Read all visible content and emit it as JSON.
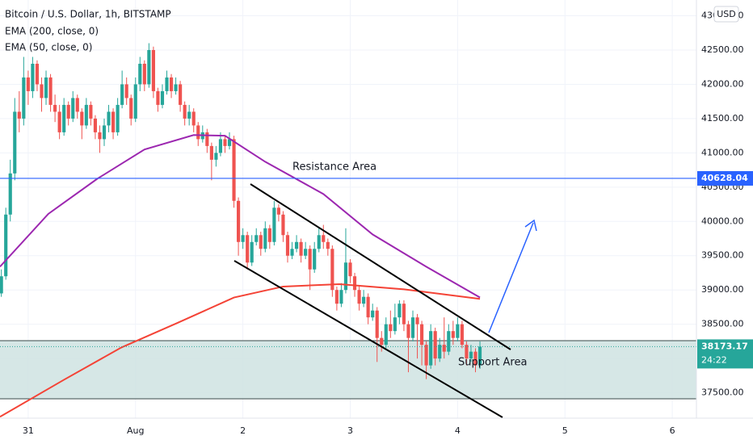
{
  "chart_data": {
    "type": "candlestick",
    "title": "Bitcoin / U.S. Dollar, 1h, BITSTAMP",
    "currency": "USD",
    "up_color": "#26a69a",
    "down_color": "#ef5350",
    "x": [
      -6,
      -5,
      -4,
      -3,
      -2,
      -1,
      0,
      1,
      2,
      3,
      4,
      5,
      6,
      7,
      8,
      9,
      10,
      11,
      12,
      13,
      14,
      15,
      16,
      17,
      18,
      19,
      20,
      21,
      22,
      23,
      24,
      25,
      26,
      27,
      28,
      29,
      30,
      31,
      32,
      33,
      34,
      35,
      36,
      37,
      38,
      39,
      40,
      41,
      42,
      43,
      44,
      45,
      46,
      47,
      48,
      49,
      50,
      51,
      52,
      53,
      54,
      55,
      56,
      57,
      58,
      59,
      60,
      61,
      62,
      63,
      64,
      65,
      66,
      67,
      68,
      69,
      70,
      71,
      72,
      73,
      74,
      75,
      76,
      77,
      78,
      79,
      80,
      81,
      82,
      83,
      84,
      85,
      86,
      87,
      88,
      89,
      90,
      91,
      92,
      93,
      94,
      95,
      96,
      97,
      98,
      99,
      100,
      101
    ],
    "open": [
      38950,
      39200,
      40100,
      40700,
      41600,
      41500,
      42100,
      41900,
      42300,
      42000,
      41800,
      42100,
      41700,
      41600,
      41300,
      41700,
      41500,
      41800,
      41600,
      41400,
      41700,
      41500,
      41300,
      41200,
      41400,
      41600,
      41300,
      41700,
      42000,
      41800,
      41500,
      42000,
      42300,
      42000,
      42500,
      41900,
      41700,
      41900,
      42100,
      41900,
      42000,
      41700,
      41500,
      41600,
      41400,
      41200,
      41300,
      41100,
      40900,
      41000,
      41200,
      41100,
      41200,
      40300,
      39700,
      39800,
      39400,
      39700,
      39800,
      39600,
      39900,
      39700,
      40200,
      40100,
      39800,
      39500,
      39600,
      39700,
      39500,
      39600,
      39300,
      39600,
      39800,
      39700,
      39600,
      39000,
      38800,
      39000,
      39400,
      39200,
      39000,
      38800,
      38900,
      38600,
      38700,
      38300,
      38200,
      38500,
      38400,
      38600,
      38800,
      38500,
      38300,
      38600,
      38500,
      38200,
      37900,
      38400,
      38000,
      38200,
      38100,
      38400,
      38300,
      38500,
      38200,
      38000,
      38100,
      37900
    ],
    "high": [
      39300,
      40200,
      40900,
      41800,
      41900,
      42400,
      42200,
      42400,
      42350,
      42100,
      42200,
      42150,
      41850,
      41700,
      41800,
      41750,
      41900,
      41850,
      41650,
      41800,
      41750,
      41550,
      41400,
      41500,
      41700,
      41650,
      41800,
      42200,
      42100,
      41850,
      42100,
      42400,
      42350,
      42600,
      42550,
      41950,
      42000,
      42200,
      42150,
      42100,
      42050,
      41750,
      41700,
      41650,
      41450,
      41400,
      41350,
      41150,
      41100,
      41300,
      41250,
      41300,
      41250,
      40350,
      39900,
      39850,
      39800,
      39900,
      39850,
      40000,
      39950,
      40300,
      40250,
      40150,
      39850,
      39700,
      39800,
      39750,
      39700,
      39650,
      39700,
      39900,
      39950,
      39750,
      39650,
      39050,
      39100,
      39900,
      39450,
      39250,
      39050,
      39000,
      38950,
      38800,
      38750,
      38400,
      38600,
      38700,
      38800,
      38850,
      38850,
      38550,
      38700,
      38650,
      38550,
      38250,
      38500,
      38450,
      38300,
      38600,
      38500,
      38550,
      38600,
      38550,
      38250,
      38200,
      38150,
      38250
    ],
    "low": [
      38900,
      39150,
      40000,
      40600,
      41300,
      41400,
      41700,
      41800,
      41900,
      41600,
      41700,
      41600,
      41450,
      41200,
      41250,
      41400,
      41450,
      41500,
      41200,
      41350,
      41400,
      41200,
      41000,
      41100,
      41300,
      41200,
      41250,
      41650,
      41700,
      41400,
      41450,
      41900,
      41900,
      41950,
      41800,
      41600,
      41650,
      41850,
      41800,
      41850,
      41600,
      41400,
      41400,
      41300,
      41100,
      41150,
      41000,
      40600,
      40800,
      40950,
      41000,
      41050,
      40200,
      39500,
      39600,
      39300,
      39350,
      39650,
      39500,
      39550,
      39600,
      39650,
      40000,
      39700,
      39400,
      39450,
      39550,
      39400,
      39450,
      39000,
      39250,
      39550,
      39600,
      39500,
      38900,
      38700,
      38750,
      38950,
      39100,
      38900,
      38700,
      38750,
      38500,
      38550,
      37950,
      38100,
      38150,
      38300,
      38350,
      38500,
      38400,
      37800,
      38250,
      38000,
      37900,
      37700,
      37850,
      37900,
      37950,
      38000,
      38050,
      38200,
      38250,
      38150,
      37900,
      37950,
      37800,
      37850
    ],
    "close": [
      39200,
      40100,
      40700,
      41600,
      41500,
      42100,
      41900,
      42300,
      42000,
      41800,
      42100,
      41700,
      41600,
      41300,
      41700,
      41500,
      41800,
      41600,
      41400,
      41700,
      41500,
      41300,
      41200,
      41400,
      41600,
      41300,
      41700,
      42000,
      41800,
      41500,
      42000,
      42300,
      42000,
      42500,
      41900,
      41700,
      41900,
      42100,
      41900,
      42000,
      41700,
      41500,
      41600,
      41400,
      41200,
      41300,
      41100,
      40900,
      41000,
      41200,
      41100,
      41200,
      40300,
      39700,
      39800,
      39400,
      39700,
      39800,
      39600,
      39900,
      39700,
      40200,
      40100,
      39800,
      39500,
      39600,
      39700,
      39500,
      39600,
      39300,
      39600,
      39800,
      39700,
      39600,
      39000,
      38800,
      39000,
      39400,
      39200,
      39000,
      38800,
      38900,
      38600,
      38700,
      38300,
      38200,
      38500,
      38400,
      38600,
      38800,
      38500,
      38300,
      38600,
      38500,
      38200,
      37900,
      38400,
      38000,
      38200,
      38100,
      38400,
      38300,
      38500,
      38200,
      38000,
      38100,
      37900,
      38173.17
    ],
    "series": [
      {
        "name": "EMA (200, close, 0)",
        "color": "#f44336",
        "x": [
          -6.3,
          8,
          20.8,
          33.4,
          46,
          57,
          69.6,
          84,
          101
        ],
        "values": [
          37150,
          37690,
          38160,
          38520,
          38890,
          39050,
          39085,
          39010,
          38870
        ]
      },
      {
        "name": "EMA (50, close, 0)",
        "color": "#9c27b0",
        "x": [
          -6.3,
          4.5,
          15.4,
          26,
          37,
          44,
          53,
          66,
          77,
          89,
          101
        ],
        "values": [
          39340,
          40110,
          40620,
          41050,
          41260,
          41250,
          40870,
          40400,
          39810,
          39340,
          38890
        ]
      }
    ],
    "xlim": [
      -6.3,
      149.4
    ],
    "ylim": [
      37130,
      43230
    ],
    "xticks": [
      {
        "value": 0,
        "label": "31"
      },
      {
        "value": 24,
        "label": "Aug"
      },
      {
        "value": 48,
        "label": "2"
      },
      {
        "value": 72,
        "label": "3"
      },
      {
        "value": 96,
        "label": "4"
      },
      {
        "value": 120,
        "label": "5"
      },
      {
        "value": 144,
        "label": "6"
      }
    ],
    "yticks": [
      {
        "value": 37500,
        "label": "37500.00"
      },
      {
        "value": 38000,
        "label": "38000.00"
      },
      {
        "value": 38500,
        "label": "38500.00"
      },
      {
        "value": 39000,
        "label": "39000.00"
      },
      {
        "value": 39500,
        "label": "39500.00"
      },
      {
        "value": 40000,
        "label": "40000.00"
      },
      {
        "value": 40500,
        "label": "40500.00"
      },
      {
        "value": 41000,
        "label": "41000.00"
      },
      {
        "value": 41500,
        "label": "41500.00"
      },
      {
        "value": 42000,
        "label": "42000.00"
      },
      {
        "value": 42500,
        "label": "42500.00"
      },
      {
        "value": 43000,
        "label": "43000.00"
      }
    ],
    "grid": true,
    "resistance": 40628.04,
    "last_price": 38173.17,
    "countdown": "24:22",
    "annotations": [
      "Resistance Area",
      "Support Area"
    ]
  }
}
